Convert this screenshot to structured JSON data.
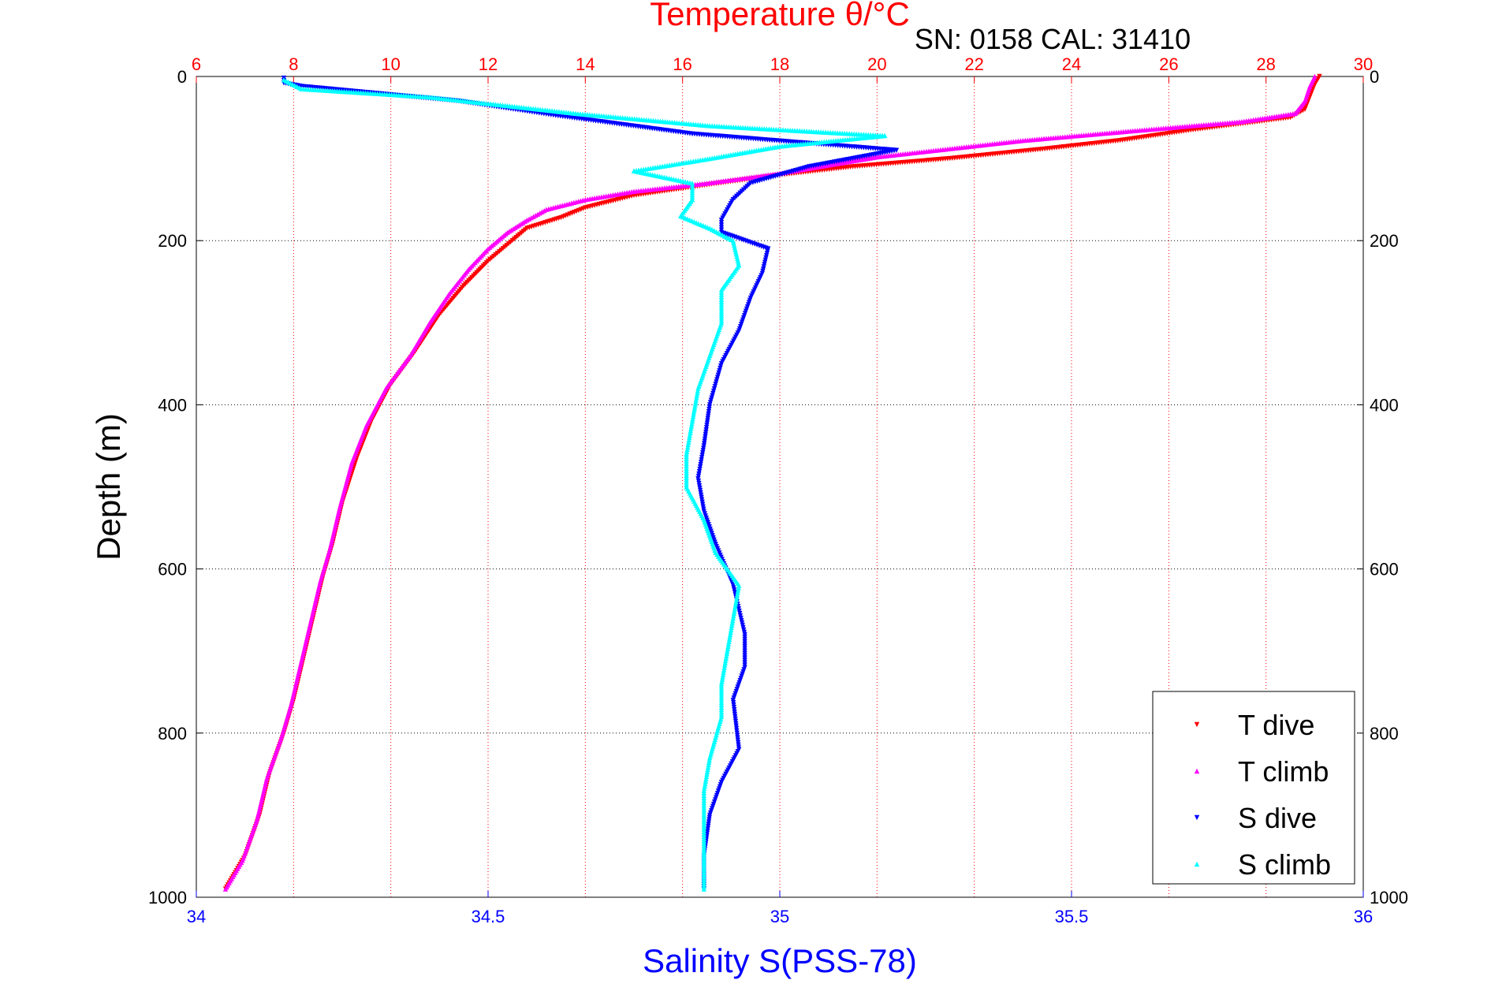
{
  "chart_data": {
    "type": "scatter",
    "title": "Temperature θ/°C",
    "subtitle": "SN: 0158  CAL: 31410",
    "ylabel": "Depth (m)",
    "xlabel_bottom": "Salinity S(PSS-78)",
    "xlabel_top": "Temperature θ/°C",
    "y_range": [
      1000,
      0
    ],
    "y_reversed": true,
    "y_ticks": [
      0,
      200,
      400,
      600,
      800,
      1000
    ],
    "x_bottom_range": [
      34,
      36
    ],
    "x_bottom_ticks": [
      "34",
      "34.5",
      "35",
      "35.5",
      "36"
    ],
    "x_top_range": [
      6,
      30
    ],
    "x_top_ticks": [
      "6",
      "8",
      "10",
      "12",
      "14",
      "16",
      "18",
      "20",
      "22",
      "24",
      "26",
      "28",
      "30"
    ],
    "grid": true,
    "legend_position": "bottom-right",
    "colors": {
      "temperature_axis": "#ff0000",
      "salinity_axis": "#0000ff",
      "grid_vertical": "#ff0000",
      "grid_horizontal": "#000000"
    },
    "series": [
      {
        "name": "T dive",
        "axis": "top",
        "color": "#ff0000",
        "marker": "triangle-down",
        "points": [
          [
            29.1,
            0
          ],
          [
            29.0,
            10
          ],
          [
            28.9,
            25
          ],
          [
            28.8,
            40
          ],
          [
            28.5,
            50
          ],
          [
            26.5,
            65
          ],
          [
            25.0,
            78
          ],
          [
            23.5,
            88
          ],
          [
            21.5,
            100
          ],
          [
            19.5,
            110
          ],
          [
            18.0,
            120
          ],
          [
            16.5,
            132
          ],
          [
            15.0,
            145
          ],
          [
            14.0,
            160
          ],
          [
            13.5,
            172
          ],
          [
            12.8,
            185
          ],
          [
            12.5,
            200
          ],
          [
            12.0,
            225
          ],
          [
            11.5,
            255
          ],
          [
            11.0,
            290
          ],
          [
            10.5,
            335
          ],
          [
            10.0,
            375
          ],
          [
            9.6,
            420
          ],
          [
            9.3,
            465
          ],
          [
            9.0,
            520
          ],
          [
            8.8,
            570
          ],
          [
            8.6,
            610
          ],
          [
            8.4,
            660
          ],
          [
            8.2,
            710
          ],
          [
            8.0,
            760
          ],
          [
            7.8,
            800
          ],
          [
            7.5,
            850
          ],
          [
            7.3,
            900
          ],
          [
            7.0,
            950
          ],
          [
            6.6,
            990
          ]
        ]
      },
      {
        "name": "T climb",
        "axis": "top",
        "color": "#ff00ff",
        "marker": "triangle-up",
        "points": [
          [
            29.0,
            0
          ],
          [
            28.9,
            12
          ],
          [
            28.8,
            30
          ],
          [
            28.6,
            45
          ],
          [
            27.5,
            55
          ],
          [
            25.5,
            65
          ],
          [
            23.0,
            78
          ],
          [
            21.5,
            88
          ],
          [
            20.0,
            98
          ],
          [
            18.0,
            118
          ],
          [
            16.5,
            130
          ],
          [
            15.0,
            140
          ],
          [
            14.0,
            150
          ],
          [
            13.2,
            162
          ],
          [
            12.8,
            175
          ],
          [
            12.4,
            190
          ],
          [
            12.0,
            210
          ],
          [
            11.6,
            235
          ],
          [
            11.2,
            265
          ],
          [
            10.8,
            300
          ],
          [
            10.4,
            340
          ],
          [
            9.9,
            380
          ],
          [
            9.5,
            425
          ],
          [
            9.2,
            470
          ],
          [
            8.95,
            525
          ],
          [
            8.75,
            575
          ],
          [
            8.55,
            615
          ],
          [
            8.35,
            665
          ],
          [
            8.15,
            715
          ],
          [
            7.95,
            765
          ],
          [
            7.75,
            805
          ],
          [
            7.45,
            855
          ],
          [
            7.25,
            905
          ],
          [
            6.95,
            955
          ],
          [
            6.6,
            990
          ]
        ]
      },
      {
        "name": "S dive",
        "axis": "bottom",
        "color": "#0000ff",
        "marker": "triangle-down",
        "points": [
          [
            34.15,
            2
          ],
          [
            34.15,
            8
          ],
          [
            34.18,
            12
          ],
          [
            34.45,
            30
          ],
          [
            34.62,
            48
          ],
          [
            34.85,
            70
          ],
          [
            35.2,
            90
          ],
          [
            35.05,
            110
          ],
          [
            34.95,
            130
          ],
          [
            34.92,
            150
          ],
          [
            34.9,
            175
          ],
          [
            34.9,
            190
          ],
          [
            34.98,
            210
          ],
          [
            34.97,
            240
          ],
          [
            34.95,
            270
          ],
          [
            34.93,
            310
          ],
          [
            34.9,
            350
          ],
          [
            34.88,
            400
          ],
          [
            34.87,
            450
          ],
          [
            34.86,
            490
          ],
          [
            34.87,
            530
          ],
          [
            34.89,
            570
          ],
          [
            34.92,
            620
          ],
          [
            34.94,
            680
          ],
          [
            34.94,
            720
          ],
          [
            34.92,
            760
          ],
          [
            34.93,
            820
          ],
          [
            34.9,
            860
          ],
          [
            34.88,
            900
          ],
          [
            34.87,
            950
          ],
          [
            34.87,
            990
          ]
        ]
      },
      {
        "name": "S climb",
        "axis": "bottom",
        "color": "#00ffff",
        "marker": "triangle-up",
        "points": [
          [
            34.15,
            4
          ],
          [
            34.18,
            15
          ],
          [
            34.4,
            25
          ],
          [
            34.65,
            45
          ],
          [
            34.88,
            60
          ],
          [
            35.18,
            72
          ],
          [
            35.0,
            85
          ],
          [
            34.88,
            100
          ],
          [
            34.75,
            115
          ],
          [
            34.85,
            130
          ],
          [
            34.85,
            150
          ],
          [
            34.83,
            170
          ],
          [
            34.88,
            185
          ],
          [
            34.92,
            200
          ],
          [
            34.93,
            230
          ],
          [
            34.9,
            260
          ],
          [
            34.9,
            300
          ],
          [
            34.88,
            340
          ],
          [
            34.86,
            380
          ],
          [
            34.85,
            420
          ],
          [
            34.84,
            460
          ],
          [
            34.84,
            500
          ],
          [
            34.87,
            540
          ],
          [
            34.89,
            580
          ],
          [
            34.93,
            620
          ],
          [
            34.92,
            660
          ],
          [
            34.91,
            700
          ],
          [
            34.9,
            740
          ],
          [
            34.9,
            780
          ],
          [
            34.88,
            830
          ],
          [
            34.87,
            870
          ],
          [
            34.87,
            920
          ],
          [
            34.87,
            960
          ],
          [
            34.87,
            990
          ]
        ]
      }
    ],
    "legend": [
      "T dive",
      "T climb",
      "S dive",
      "S climb"
    ]
  }
}
